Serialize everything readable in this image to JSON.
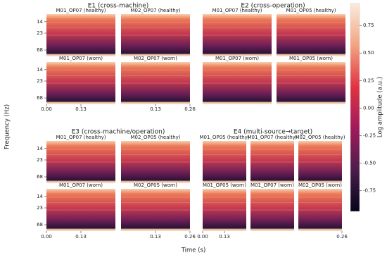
{
  "chart_data": {
    "type": "heatmap",
    "y_label": "Frequency (Hz)",
    "x_label": "Time (s)",
    "xlim": [
      0,
      0.26
    ],
    "xticks": [
      {
        "value": 0,
        "label": "0.00"
      },
      0.13,
      0.26
    ],
    "yticks": [
      14,
      23,
      68
    ],
    "colorbar": {
      "label": "Log amplitude (a.u.)",
      "lim": [
        -0.94,
        0.95
      ],
      "ticks": [
        0.75,
        {
          "value": 0.5,
          "label": "0.50"
        },
        0.25,
        {
          "value": 0,
          "label": "0.00"
        },
        -0.25,
        {
          "value": -0.5,
          "label": "-0.50"
        },
        -0.75
      ]
    },
    "groups": [
      {
        "title": "E1 (cross-machine)",
        "panels": [
          [
            "M01_OP07 (healthy)",
            "M02_OP07 (healthy)"
          ],
          [
            "M01_OP07 (worn)",
            "M02_OP07 (worn)"
          ]
        ]
      },
      {
        "title": "E2 (cross-operation)",
        "panels": [
          [
            "M01_OP07 (healthy)",
            "M01_OP05 (healthy)"
          ],
          [
            "M01_OP07 (worn)",
            "M01_OP05 (worn)"
          ]
        ]
      },
      {
        "title": "E3 (cross-machine/operation)",
        "panels": [
          [
            "M01_OP07 (healthy)",
            "M02_OP05 (healthy)"
          ],
          [
            "M01_OP07 (worn)",
            "M02_OP05 (worn)"
          ]
        ]
      },
      {
        "title": "E4 (multi-source→target)",
        "panels": [
          [
            "M01_OP05 (healthy)",
            "M01_OP07 (healthy)",
            "M02_OP05 (healthy)"
          ],
          [
            "M01_OP05 (worn)",
            "M01_OP07 (worn)",
            "M02_OP05 (worn)"
          ]
        ]
      }
    ]
  }
}
